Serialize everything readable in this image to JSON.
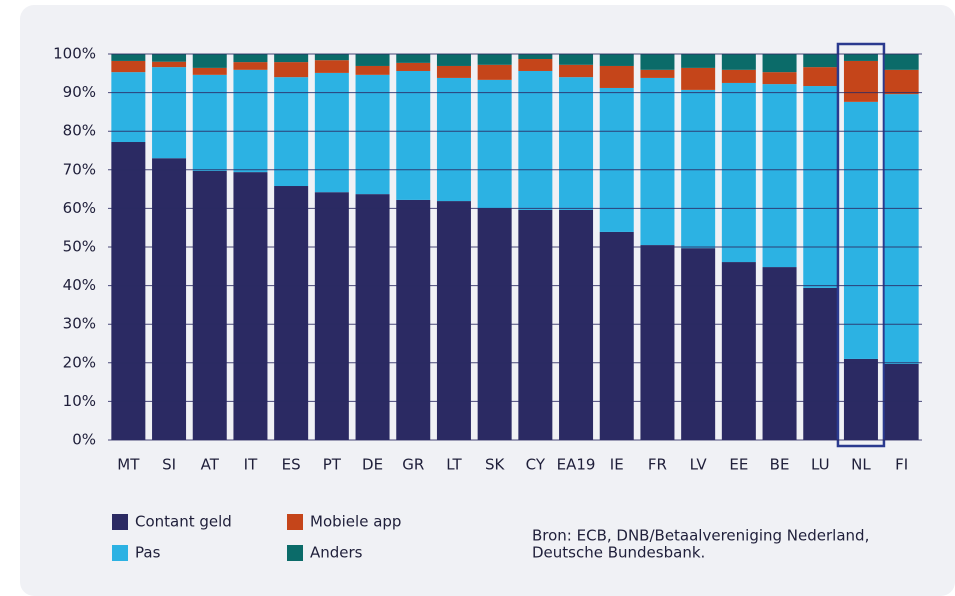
{
  "chart_data": {
    "type": "stacked_bar",
    "categories": [
      "MT",
      "SI",
      "AT",
      "IT",
      "ES",
      "PT",
      "DE",
      "GR",
      "LT",
      "SK",
      "CY",
      "EA19",
      "IE",
      "FR",
      "LV",
      "EE",
      "BE",
      "LU",
      "NL",
      "FI"
    ],
    "series": [
      {
        "name": "Contant geld",
        "color": "#2b2a63",
        "values": [
          77.2,
          73,
          69.7,
          69.4,
          65.8,
          64.2,
          63.7,
          62.2,
          61.9,
          60.1,
          59.6,
          59.6,
          53.9,
          50.5,
          49.7,
          46.1,
          44.8,
          39.4,
          21,
          19.7
        ]
      },
      {
        "name": "Pas",
        "color": "#2cb2e3",
        "values": [
          18.1,
          23.6,
          24.9,
          26.5,
          28.2,
          30.9,
          30.9,
          33.4,
          31.9,
          33.2,
          36,
          34.4,
          37.3,
          43.3,
          41,
          46.4,
          47.4,
          52.3,
          66.6,
          69.9
        ]
      },
      {
        "name": "Mobiele app",
        "color": "#c5451a",
        "values": [
          2.9,
          1.4,
          1.8,
          2,
          3.9,
          3.3,
          2.3,
          2.1,
          3.1,
          3.9,
          3.1,
          3.2,
          5.7,
          2.1,
          5.7,
          3.4,
          3.1,
          4.9,
          10.6,
          6.3
        ]
      },
      {
        "name": "Anders",
        "color": "#0b6b69",
        "values": [
          1.8,
          2,
          3.6,
          2.1,
          2.1,
          1.6,
          3.1,
          2.3,
          3.1,
          2.8,
          1.3,
          2.8,
          3.1,
          4.1,
          3.6,
          4.1,
          4.7,
          3.4,
          1.8,
          4.1
        ]
      }
    ],
    "ylim": [
      0,
      100
    ],
    "yticks": [
      {
        "value": 0,
        "label": "0%"
      },
      {
        "value": 10,
        "label": "10%"
      },
      {
        "value": 20,
        "label": "20%"
      },
      {
        "value": 30,
        "label": "30%"
      },
      {
        "value": 40,
        "label": "40%"
      },
      {
        "value": 50,
        "label": "50%"
      },
      {
        "value": 60,
        "label": "60%"
      },
      {
        "value": 70,
        "label": "70%"
      },
      {
        "value": 80,
        "label": "80%"
      },
      {
        "value": 90,
        "label": "90%"
      },
      {
        "value": 100,
        "label": "100%"
      }
    ],
    "grid": true,
    "highlight": "NL",
    "source": [
      "Bron: ECB, DNB/Betaalvereniging Nederland,",
      "Deutsche Bundesbank."
    ]
  }
}
